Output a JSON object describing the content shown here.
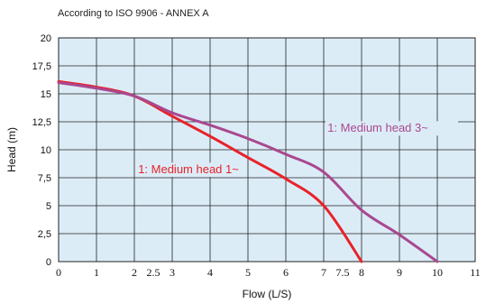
{
  "chart_data": {
    "type": "line",
    "subtitle": "According to ISO 9906 - ANNEX A",
    "xlabel": "Flow (L/S)",
    "ylabel": "Head (m)",
    "xlim": [
      0,
      11
    ],
    "ylim": [
      0,
      20
    ],
    "x_ticks": [
      "0",
      "1",
      "2",
      "2.5",
      "3",
      "4",
      "5",
      "6",
      "7",
      "7.5",
      "8",
      "9",
      "10",
      "11"
    ],
    "y_ticks": [
      "0",
      "2,5",
      "5",
      "7,5",
      "10",
      "12,5",
      "15",
      "17,5",
      "20"
    ],
    "grid": true,
    "background_color": "#dcecf7",
    "series": [
      {
        "name": "1: Medium head 1~",
        "color": "#e8222a",
        "label_text": "1: Medium head 1~",
        "x": [
          0,
          1,
          2,
          3,
          4,
          5,
          6,
          7,
          8
        ],
        "y": [
          16.1,
          15.6,
          14.8,
          13.0,
          11.2,
          9.3,
          7.4,
          5.0,
          0.0
        ]
      },
      {
        "name": "1: Medium head 3~",
        "color": "#a9488f",
        "label_text": "1: Medium head 3~",
        "x": [
          0,
          1,
          2,
          3,
          4,
          5,
          6,
          7,
          8,
          9,
          10
        ],
        "y": [
          16.0,
          15.5,
          14.8,
          13.3,
          12.2,
          11.0,
          9.6,
          8.0,
          4.6,
          2.4,
          0.0
        ]
      }
    ]
  }
}
